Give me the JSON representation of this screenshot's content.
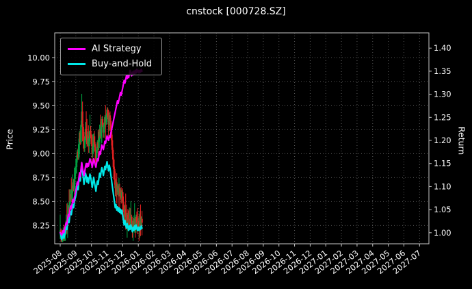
{
  "chart_data": {
    "type": "line",
    "subtype": "price-candles-with-return-lines",
    "title": "cnstock [000728.SZ]",
    "ylabel_left": "Price",
    "ylabel_right": "Return",
    "background_color": "#000000",
    "text_color": "#ffffff",
    "grid_color": "#5c5c5c",
    "spine_color": "#c8c8c8",
    "x_axis": {
      "range_months": [
        -0.35,
        23.6
      ],
      "tick_labels": [
        "2025-08",
        "2025-09",
        "2025-10",
        "2025-11",
        "2025-12",
        "2026-01",
        "2026-02",
        "2026-03",
        "2026-04",
        "2026-05",
        "2026-06",
        "2026-07",
        "2026-08",
        "2026-09",
        "2026-10",
        "2026-11",
        "2026-12",
        "2027-01",
        "2027-02",
        "2027-03",
        "2027-04",
        "2027-05",
        "2027-06",
        "2027-07"
      ]
    },
    "left_axis": {
      "ticks": [
        8.25,
        8.5,
        8.75,
        9.0,
        9.25,
        9.5,
        9.75,
        10.0
      ],
      "range": [
        8.06,
        10.26
      ]
    },
    "right_axis": {
      "ticks": [
        1.0,
        1.05,
        1.1,
        1.15,
        1.2,
        1.25,
        1.3,
        1.35,
        1.4
      ],
      "range": [
        0.976,
        1.433
      ]
    },
    "legend": [
      {
        "label": "AI Strategy",
        "color": "#ff00ff"
      },
      {
        "label": "Buy-and-Hold",
        "color": "#00e8e8"
      }
    ],
    "candles": {
      "start_month": "2025-08",
      "bars_per_month": 21,
      "first_open": 8.18,
      "up_color": "#00a040",
      "down_color": "#e02020",
      "closes": [
        8.2,
        8.14,
        8.08,
        8.12,
        8.18,
        8.1,
        8.16,
        8.24,
        8.3,
        8.26,
        8.36,
        8.44,
        8.38,
        8.5,
        8.58,
        8.52,
        8.62,
        8.7,
        8.64,
        8.74,
        8.8,
        8.86,
        8.94,
        9.02,
        8.96,
        9.1,
        9.22,
        9.12,
        9.3,
        9.44,
        9.28,
        9.18,
        9.06,
        9.14,
        9.26,
        9.2,
        9.1,
        9.18,
        9.08,
        9.16,
        9.24,
        9.18,
        9.1,
        9.0,
        9.08,
        9.18,
        9.1,
        9.02,
        8.94,
        9.04,
        9.12,
        9.06,
        9.16,
        9.26,
        9.18,
        9.28,
        9.36,
        9.3,
        9.22,
        9.3,
        9.38,
        9.32,
        9.4,
        9.46,
        9.38,
        9.3,
        9.4,
        9.34,
        9.24,
        9.14,
        9.04,
        8.94,
        8.84,
        8.74,
        8.64,
        8.7,
        8.6,
        8.66,
        8.58,
        8.64,
        8.56,
        8.62,
        8.54,
        8.6,
        8.5,
        8.42,
        8.34,
        8.42,
        8.34,
        8.28,
        8.36,
        8.3,
        8.24,
        8.32,
        8.26,
        8.34,
        8.28,
        8.22,
        8.3,
        8.24,
        8.32,
        8.26,
        8.34,
        8.28,
        8.24,
        8.3,
        8.24,
        8.3,
        8.26,
        8.32,
        8.28
      ]
    },
    "series": [
      {
        "name": "AI Strategy",
        "axis": "right",
        "color": "#ff00ff",
        "values": [
          1.0,
          0.998,
          0.995,
          1.0,
          1.005,
          1.0,
          1.008,
          1.015,
          1.022,
          1.018,
          1.03,
          1.04,
          1.035,
          1.048,
          1.058,
          1.052,
          1.062,
          1.072,
          1.066,
          1.076,
          1.082,
          1.09,
          1.1,
          1.11,
          1.104,
          1.118,
          1.13,
          1.122,
          1.138,
          1.152,
          1.14,
          1.132,
          1.124,
          1.132,
          1.144,
          1.15,
          1.142,
          1.15,
          1.144,
          1.152,
          1.16,
          1.155,
          1.15,
          1.142,
          1.15,
          1.16,
          1.154,
          1.148,
          1.142,
          1.152,
          1.16,
          1.156,
          1.166,
          1.176,
          1.17,
          1.18,
          1.19,
          1.186,
          1.18,
          1.188,
          1.198,
          1.194,
          1.202,
          1.21,
          1.205,
          1.2,
          1.21,
          1.206,
          1.215,
          1.222,
          1.23,
          1.238,
          1.246,
          1.254,
          1.262,
          1.27,
          1.278,
          1.286,
          1.28,
          1.288,
          1.296,
          1.304,
          1.298,
          1.306,
          1.314,
          1.322,
          1.33,
          1.324,
          1.332,
          1.34,
          1.334,
          1.342,
          1.336,
          1.344,
          1.352,
          1.346,
          1.34,
          1.348,
          1.342,
          1.35,
          1.344,
          1.352,
          1.346,
          1.354,
          1.348,
          1.352,
          1.346,
          1.352,
          1.348,
          1.354,
          1.35
        ]
      },
      {
        "name": "Buy-and-Hold",
        "axis": "right",
        "color": "#00e8e8",
        "values": [
          1.0,
          0.993,
          0.985,
          0.99,
          0.998,
          0.988,
          0.995,
          1.005,
          1.012,
          1.007,
          1.02,
          1.029,
          1.022,
          1.037,
          1.046,
          1.039,
          1.051,
          1.061,
          1.054,
          1.066,
          1.073,
          1.08,
          1.09,
          1.1,
          1.093,
          1.11,
          1.124,
          1.112,
          1.134,
          1.151,
          1.132,
          1.12,
          1.105,
          1.115,
          1.129,
          1.122,
          1.11,
          1.12,
          1.107,
          1.117,
          1.127,
          1.12,
          1.11,
          1.098,
          1.107,
          1.12,
          1.11,
          1.1,
          1.09,
          1.102,
          1.112,
          1.105,
          1.117,
          1.129,
          1.12,
          1.132,
          1.141,
          1.134,
          1.124,
          1.134,
          1.144,
          1.137,
          1.146,
          1.154,
          1.144,
          1.134,
          1.146,
          1.139,
          1.127,
          1.115,
          1.102,
          1.09,
          1.078,
          1.066,
          1.054,
          1.061,
          1.049,
          1.056,
          1.046,
          1.054,
          1.044,
          1.051,
          1.041,
          1.049,
          1.037,
          1.027,
          1.017,
          1.027,
          1.017,
          1.01,
          1.02,
          1.012,
          1.005,
          1.015,
          1.007,
          1.017,
          1.01,
          1.002,
          1.012,
          1.005,
          1.015,
          1.007,
          1.017,
          1.01,
          1.005,
          1.012,
          1.005,
          1.012,
          1.007,
          1.015,
          1.01
        ]
      }
    ]
  }
}
